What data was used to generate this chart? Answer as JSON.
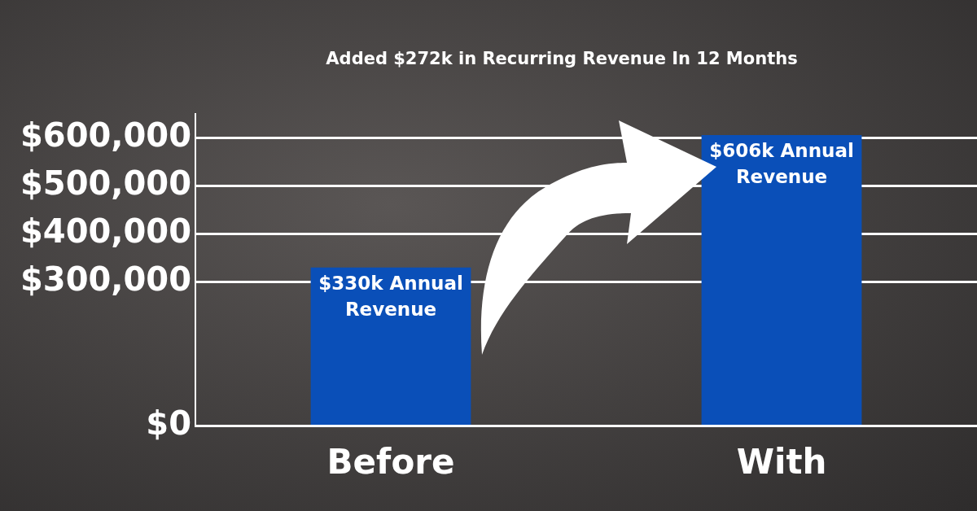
{
  "chart_data": {
    "type": "bar",
    "title": "Added $272k in Recurring Revenue In 12 Months",
    "categories": [
      "Before",
      "With"
    ],
    "values": [
      330000,
      606000
    ],
    "color": "#0a4fb8",
    "value_labels": [
      "$330k Annual Revenue",
      "$606k Annual Revenue"
    ],
    "ylim": [
      0,
      650000
    ],
    "yticks": [
      {
        "value": 0,
        "label": "$0"
      },
      {
        "value": 300000,
        "label": "$300,000"
      },
      {
        "value": 400000,
        "label": "$400,000"
      },
      {
        "value": 500000,
        "label": "$500,000"
      },
      {
        "value": 600000,
        "label": "$600,000"
      }
    ],
    "grid": "y"
  }
}
